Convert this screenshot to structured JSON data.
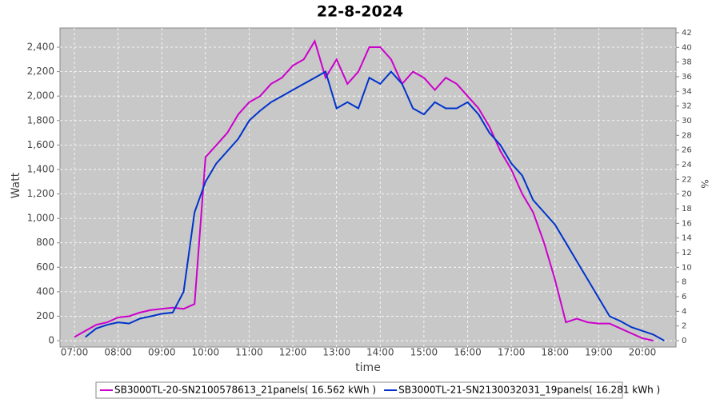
{
  "chart_data": {
    "type": "line",
    "title": "22-8-2024",
    "x_label": "time",
    "y_label": "Watt",
    "y2_label": "%",
    "x": [
      7,
      7.25,
      7.5,
      7.75,
      8,
      8.25,
      8.5,
      8.75,
      9,
      9.25,
      9.5,
      9.75,
      10,
      10.25,
      10.5,
      10.75,
      11,
      11.25,
      11.5,
      11.75,
      12,
      12.25,
      12.5,
      12.75,
      13,
      13.25,
      13.5,
      13.75,
      14,
      14.25,
      14.5,
      14.75,
      15,
      15.25,
      15.5,
      15.75,
      16,
      16.25,
      16.5,
      16.75,
      17,
      17.25,
      17.5,
      17.75,
      18,
      18.25,
      18.5,
      18.75,
      19,
      19.25,
      19.5,
      19.75,
      20,
      20.25,
      20.5
    ],
    "series": [
      {
        "name": "SB3000TL-20-SN2100578613_21panels( 16.562 kWh )",
        "color": "#cc00cc",
        "values": [
          30,
          80,
          130,
          150,
          190,
          200,
          230,
          250,
          260,
          270,
          260,
          300,
          1500,
          1600,
          1700,
          1850,
          1950,
          2000,
          2100,
          2150,
          2250,
          2300,
          2450,
          2150,
          2300,
          2100,
          2200,
          2400,
          2400,
          2300,
          2100,
          2200,
          2150,
          2050,
          2150,
          2100,
          2000,
          1900,
          1750,
          1550,
          1400,
          1200,
          1050,
          800,
          500,
          150,
          180,
          150,
          140,
          140,
          100,
          60,
          20,
          0,
          null
        ]
      },
      {
        "name": "SB3000TL-21-SN2130032031_19panels( 16.281 kWh )",
        "color": "#0033cc",
        "values": [
          null,
          30,
          100,
          130,
          150,
          140,
          180,
          200,
          220,
          230,
          400,
          1050,
          1300,
          1450,
          1550,
          1650,
          1800,
          1880,
          1950,
          2000,
          2050,
          2100,
          2150,
          2200,
          1900,
          1950,
          1900,
          2150,
          2100,
          2200,
          2100,
          1900,
          1850,
          1950,
          1900,
          1900,
          1950,
          1850,
          1700,
          1600,
          1450,
          1350,
          1150,
          1050,
          950,
          800,
          650,
          500,
          350,
          200,
          160,
          110,
          80,
          50,
          0
        ]
      }
    ],
    "xlim": [
      6.67,
      20.77
    ],
    "xticks": [
      {
        "value": 7,
        "label": "07:00"
      },
      {
        "value": 8,
        "label": "08:00"
      },
      {
        "value": 9,
        "label": "09:00"
      },
      {
        "value": 10,
        "label": "10:00"
      },
      {
        "value": 11,
        "label": "11:00"
      },
      {
        "value": 12,
        "label": "12:00"
      },
      {
        "value": 13,
        "label": "13:00"
      },
      {
        "value": 14,
        "label": "14:00"
      },
      {
        "value": 15,
        "label": "15:00"
      },
      {
        "value": 16,
        "label": "16:00"
      },
      {
        "value": 17,
        "label": "17:00"
      },
      {
        "value": 18,
        "label": "18:00"
      },
      {
        "value": 19,
        "label": "19:00"
      },
      {
        "value": 20,
        "label": "20:00"
      }
    ],
    "ylim": [
      -52,
      2557
    ],
    "yticks": [
      0,
      200,
      400,
      600,
      800,
      {
        "value": 1000,
        "label": "1,000"
      },
      {
        "value": 1200,
        "label": "1,200"
      },
      {
        "value": 1400,
        "label": "1,400"
      },
      {
        "value": 1600,
        "label": "1,600"
      },
      {
        "value": 1800,
        "label": "1,800"
      },
      {
        "value": 2000,
        "label": "2,000"
      },
      {
        "value": 2200,
        "label": "2,200"
      },
      {
        "value": 2400,
        "label": "2,400"
      }
    ],
    "y2lim": [
      -0.87,
      42.65
    ],
    "y2ticks": [
      0,
      2,
      4,
      6,
      8,
      10,
      12,
      14,
      16,
      18,
      20,
      22,
      24,
      26,
      28,
      30,
      32,
      34,
      36,
      38,
      40,
      42
    ],
    "grid": true,
    "legend": "bottom",
    "background": "#c8c8c8"
  }
}
